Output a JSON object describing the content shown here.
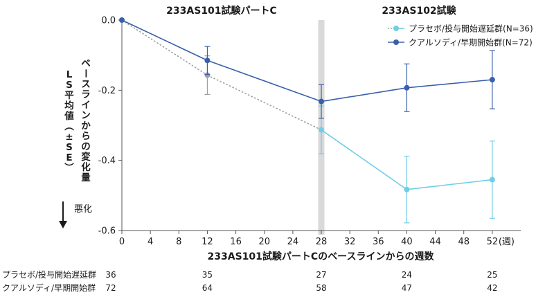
{
  "chart_data": {
    "type": "line",
    "section_labels": [
      "233AS101試験パートC",
      "233AS102試験"
    ],
    "ylabel": "ベースラインからの変化量\nLS平均値(±SE)",
    "xlabel": "233AS101試験パートCのベースラインからの週数",
    "x_unit_label": "(週)",
    "worse_label": "悪化",
    "ylim": [
      -0.6,
      0.0
    ],
    "yticks": [
      0.0,
      -0.2,
      -0.4,
      -0.6
    ],
    "ytick_labels": [
      "0.0",
      "-0.2",
      "-0.4",
      "-0.6"
    ],
    "xlim": [
      0,
      56
    ],
    "xticks": [
      0,
      4,
      8,
      12,
      16,
      20,
      24,
      28,
      32,
      36,
      40,
      44,
      48,
      52
    ],
    "shaded_week": 28,
    "legend_position": "top-right",
    "series": [
      {
        "name": "プラセボ/投与開始遅延群(N=36)",
        "color_part_c": "#9e9e9e",
        "color_ext": "#6fcde6",
        "line_style_part_c": "dotted",
        "points": [
          {
            "x": 0,
            "y": 0.0,
            "se": null
          },
          {
            "x": 12,
            "y": -0.157,
            "se": 0.055
          },
          {
            "x": 28,
            "y": -0.313,
            "se": 0.068
          },
          {
            "x": 40,
            "y": -0.483,
            "se": 0.095
          },
          {
            "x": 52,
            "y": -0.455,
            "se": 0.11
          }
        ]
      },
      {
        "name": "クアルソディ/早期開始群(N=72)",
        "color": "#3a60ab",
        "points": [
          {
            "x": 0,
            "y": 0.0,
            "se": null
          },
          {
            "x": 12,
            "y": -0.115,
            "se": 0.04
          },
          {
            "x": 28,
            "y": -0.232,
            "se": 0.048
          },
          {
            "x": 40,
            "y": -0.193,
            "se": 0.068
          },
          {
            "x": 52,
            "y": -0.17,
            "se": 0.083
          }
        ]
      }
    ],
    "risk_table": {
      "weeks": [
        0,
        12,
        28,
        40,
        52
      ],
      "rows": [
        {
          "label": "プラセボ/投与開始遅延群",
          "counts": [
            "36",
            "35",
            "27",
            "24",
            "25"
          ]
        },
        {
          "label": "クアルソディ/早期開始群",
          "counts": [
            "72",
            "64",
            "58",
            "47",
            "42"
          ]
        }
      ]
    }
  }
}
